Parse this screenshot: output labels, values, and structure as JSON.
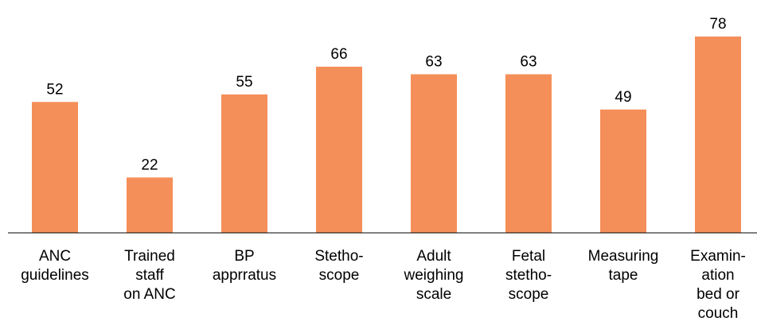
{
  "chart_data": {
    "type": "bar",
    "categories": [
      "ANC\nguidelines",
      "Trained\nstaff\non ANC",
      "BP\napprratus",
      "Stetho-\nscope",
      "Adult\nweighing\nscale",
      "Fetal\nstetho-\nscope",
      "Measuring\ntape",
      "Examin-\nation\nbed or\ncouch"
    ],
    "values": [
      52,
      22,
      55,
      66,
      63,
      63,
      49,
      78
    ],
    "color": "#f58f59",
    "ylim": [
      0,
      80
    ]
  }
}
